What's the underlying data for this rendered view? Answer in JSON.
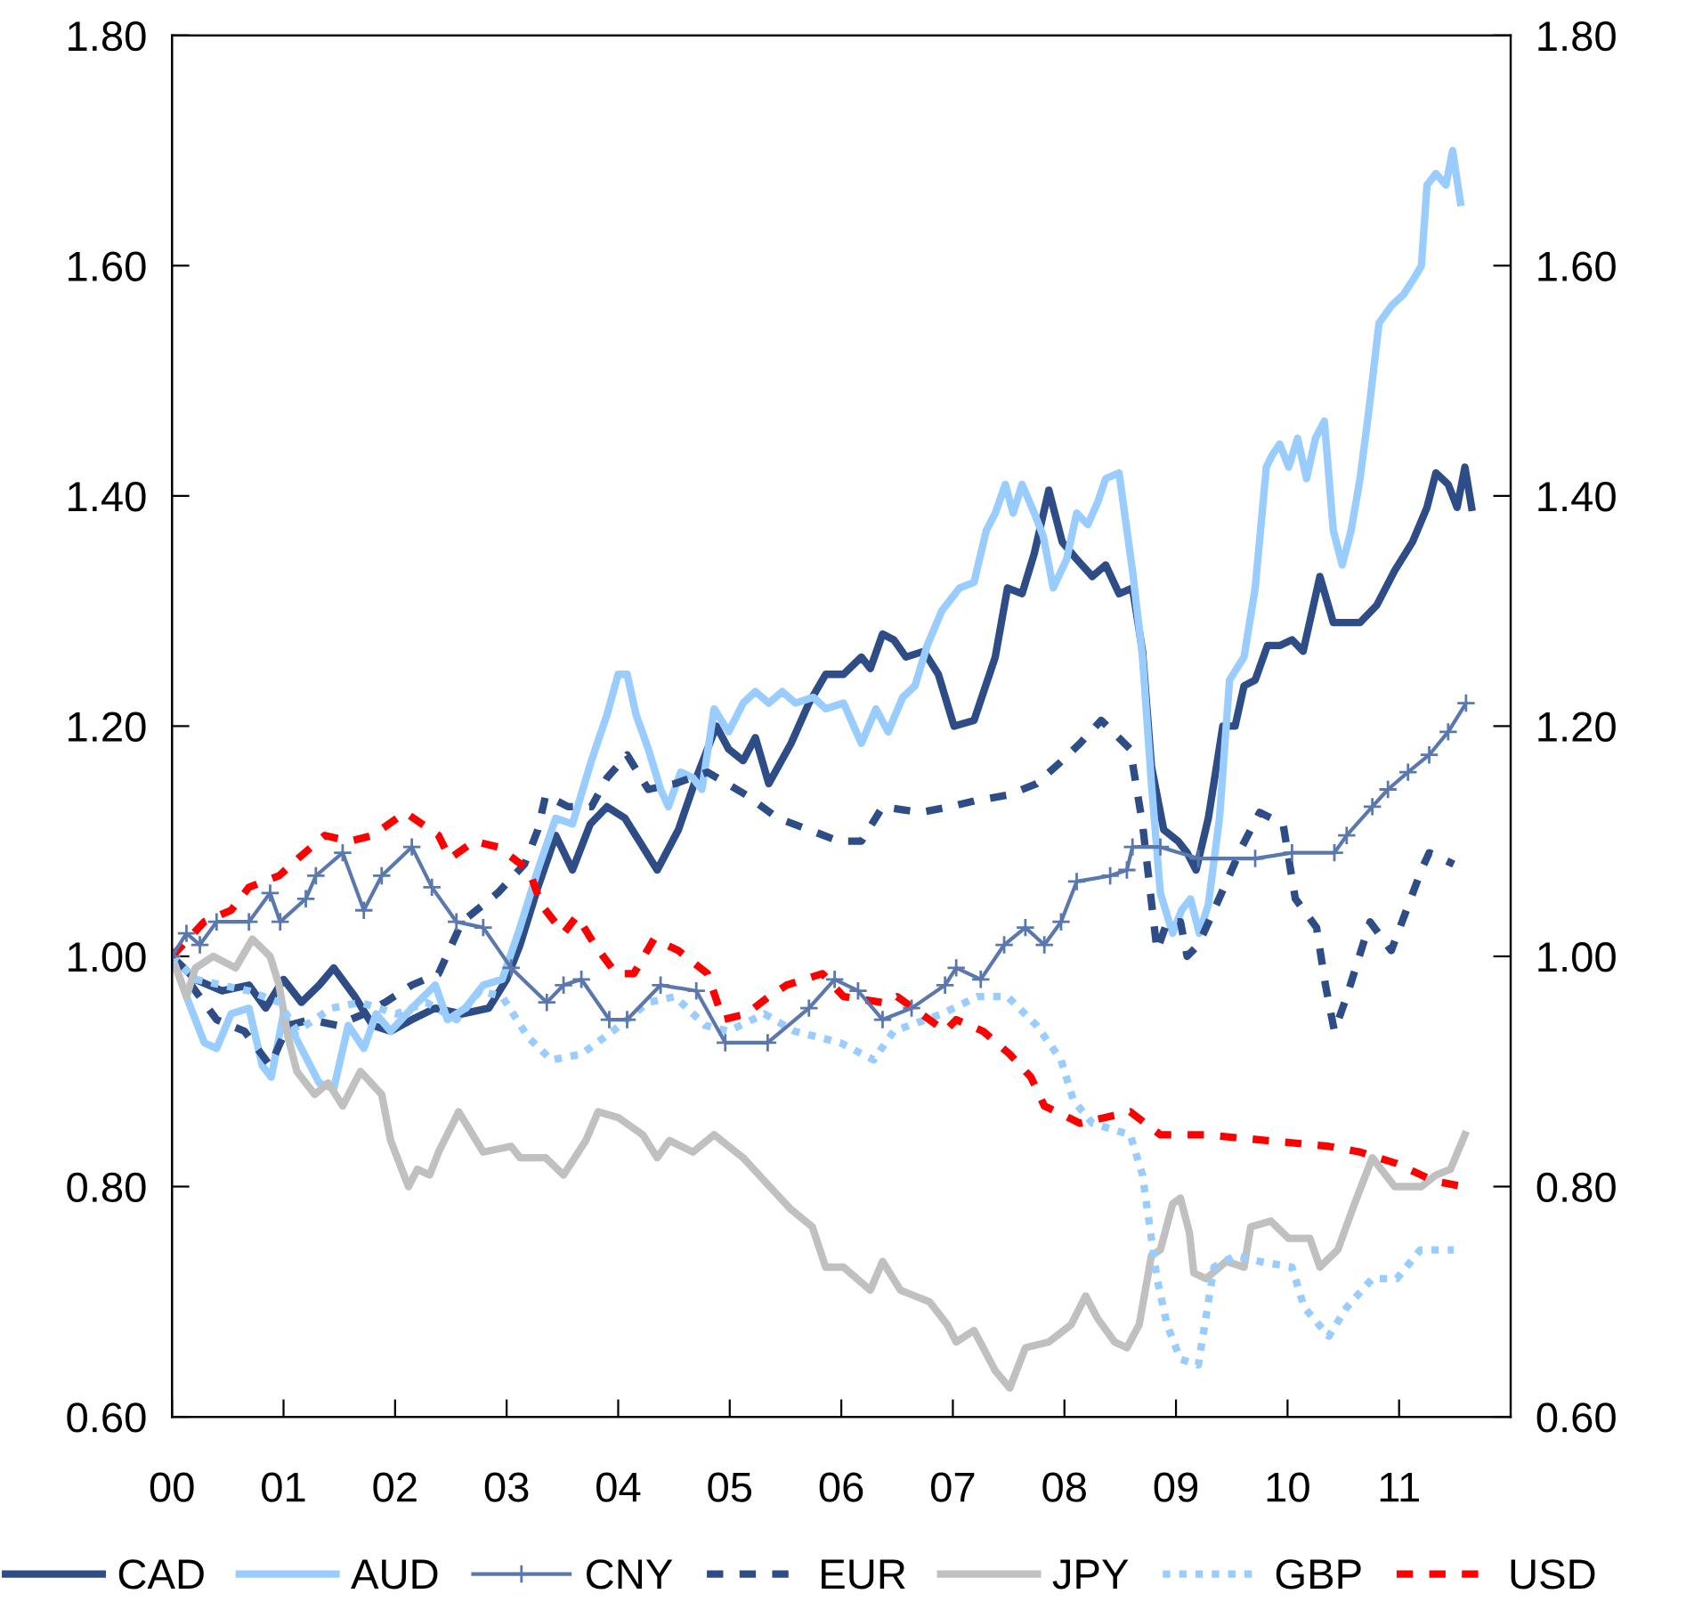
{
  "chart_data": {
    "type": "line",
    "xlim": [
      0,
      12
    ],
    "xticks": [
      {
        "value": 0,
        "label": "00"
      },
      {
        "value": 1,
        "label": "01"
      },
      {
        "value": 2,
        "label": "02"
      },
      {
        "value": 3,
        "label": "03"
      },
      {
        "value": 4,
        "label": "04"
      },
      {
        "value": 5,
        "label": "05"
      },
      {
        "value": 6,
        "label": "06"
      },
      {
        "value": 7,
        "label": "07"
      },
      {
        "value": 8,
        "label": "08"
      },
      {
        "value": 9,
        "label": "09"
      },
      {
        "value": 10,
        "label": "10"
      },
      {
        "value": 11,
        "label": "11"
      }
    ],
    "ylim": [
      0.6,
      1.8
    ],
    "yticks": [
      {
        "value": 0.6,
        "label": "0.60"
      },
      {
        "value": 0.8,
        "label": "0.80"
      },
      {
        "value": 1.0,
        "label": "1.00"
      },
      {
        "value": 1.2,
        "label": "1.20"
      },
      {
        "value": 1.4,
        "label": "1.40"
      },
      {
        "value": 1.6,
        "label": "1.60"
      },
      {
        "value": 1.8,
        "label": "1.80"
      }
    ],
    "y2lim": [
      0.6,
      1.8
    ],
    "y2ticks": [
      {
        "value": 0.6,
        "label": "0.60"
      },
      {
        "value": 0.8,
        "label": "0.80"
      },
      {
        "value": 1.0,
        "label": "1.00"
      },
      {
        "value": 1.2,
        "label": "1.20"
      },
      {
        "value": 1.4,
        "label": "1.40"
      },
      {
        "value": 1.6,
        "label": "1.60"
      },
      {
        "value": 1.8,
        "label": "1.80"
      }
    ],
    "grid": false,
    "legend": "bottom",
    "series": [
      {
        "name": "CAD",
        "color": "#2e4d87",
        "line_style": "solid",
        "marker": "none",
        "x": [
          0,
          0.21,
          0.45,
          0.69,
          0.84,
          1.0,
          1.16,
          1.32,
          1.45,
          1.64,
          1.8,
          1.96,
          2.15,
          2.36,
          2.6,
          2.84,
          3.0,
          3.12,
          3.28,
          3.44,
          3.59,
          3.75,
          3.9,
          4.06,
          4.19,
          4.35,
          4.54,
          4.7,
          4.88,
          4.99,
          5.12,
          5.23,
          5.35,
          5.55,
          5.71,
          5.86,
          6.02,
          6.18,
          6.26,
          6.37,
          6.47,
          6.58,
          6.74,
          6.87,
          7.01,
          7.19,
          7.38,
          7.49,
          7.62,
          7.73,
          7.86,
          7.98,
          8.11,
          8.25,
          8.37,
          8.49,
          8.61,
          8.7,
          8.78,
          8.89,
          9.02,
          9.1,
          9.18,
          9.29,
          9.42,
          9.53,
          9.61,
          9.71,
          9.82,
          9.93,
          10.04,
          10.14,
          10.29,
          10.41,
          10.65,
          10.8,
          10.96,
          11.12,
          11.25,
          11.33,
          11.44,
          11.52,
          11.59,
          11.65
        ],
        "values": [
          1.0,
          0.98,
          0.97,
          0.975,
          0.955,
          0.98,
          0.96,
          0.975,
          0.99,
          0.965,
          0.94,
          0.935,
          0.945,
          0.955,
          0.95,
          0.955,
          0.98,
          1.01,
          1.06,
          1.105,
          1.075,
          1.115,
          1.13,
          1.12,
          1.1,
          1.075,
          1.11,
          1.155,
          1.2,
          1.18,
          1.17,
          1.19,
          1.15,
          1.185,
          1.22,
          1.245,
          1.245,
          1.26,
          1.25,
          1.28,
          1.275,
          1.26,
          1.265,
          1.245,
          1.2,
          1.205,
          1.26,
          1.32,
          1.315,
          1.35,
          1.405,
          1.36,
          1.345,
          1.33,
          1.34,
          1.315,
          1.32,
          1.265,
          1.165,
          1.11,
          1.1,
          1.09,
          1.075,
          1.12,
          1.2,
          1.2,
          1.235,
          1.24,
          1.27,
          1.27,
          1.275,
          1.265,
          1.33,
          1.29,
          1.29,
          1.305,
          1.335,
          1.36,
          1.39,
          1.42,
          1.41,
          1.39,
          1.425,
          1.39
        ]
      },
      {
        "name": "AUD",
        "color": "#99ccff",
        "line_style": "solid",
        "marker": "none",
        "x": [
          0,
          0.13,
          0.29,
          0.4,
          0.53,
          0.69,
          0.81,
          0.89,
          1.0,
          1.16,
          1.32,
          1.45,
          1.58,
          1.72,
          1.83,
          1.96,
          2.15,
          2.36,
          2.47,
          2.63,
          2.79,
          2.96,
          3.12,
          3.28,
          3.44,
          3.59,
          3.76,
          3.9,
          4.0,
          4.08,
          4.16,
          4.27,
          4.38,
          4.45,
          4.56,
          4.67,
          4.75,
          4.86,
          4.99,
          5.12,
          5.23,
          5.35,
          5.47,
          5.59,
          5.75,
          5.86,
          6.02,
          6.18,
          6.31,
          6.42,
          6.55,
          6.66,
          6.77,
          6.9,
          7.06,
          7.19,
          7.3,
          7.38,
          7.47,
          7.54,
          7.62,
          7.73,
          7.81,
          7.9,
          8.02,
          8.11,
          8.21,
          8.3,
          8.37,
          8.49,
          8.61,
          8.7,
          8.78,
          8.86,
          8.97,
          9.05,
          9.13,
          9.21,
          9.29,
          9.39,
          9.48,
          9.61,
          9.71,
          9.81,
          9.86,
          9.93,
          10.01,
          10.09,
          10.17,
          10.25,
          10.33,
          10.41,
          10.49,
          10.57,
          10.65,
          10.73,
          10.82,
          10.93,
          11.04,
          11.14,
          11.2,
          11.25,
          11.33,
          11.42,
          11.48,
          11.55
        ],
        "values": [
          1.0,
          0.965,
          0.925,
          0.92,
          0.95,
          0.955,
          0.905,
          0.895,
          0.95,
          0.92,
          0.89,
          0.885,
          0.94,
          0.92,
          0.95,
          0.935,
          0.955,
          0.975,
          0.945,
          0.955,
          0.975,
          0.98,
          1.025,
          1.075,
          1.12,
          1.115,
          1.17,
          1.21,
          1.245,
          1.245,
          1.21,
          1.18,
          1.145,
          1.13,
          1.16,
          1.155,
          1.145,
          1.215,
          1.195,
          1.22,
          1.23,
          1.22,
          1.23,
          1.22,
          1.225,
          1.215,
          1.22,
          1.185,
          1.215,
          1.195,
          1.225,
          1.235,
          1.27,
          1.3,
          1.32,
          1.325,
          1.37,
          1.385,
          1.41,
          1.385,
          1.41,
          1.385,
          1.365,
          1.32,
          1.345,
          1.385,
          1.375,
          1.395,
          1.415,
          1.42,
          1.335,
          1.26,
          1.15,
          1.055,
          1.02,
          1.04,
          1.05,
          1.02,
          1.045,
          1.12,
          1.24,
          1.26,
          1.32,
          1.425,
          1.435,
          1.445,
          1.425,
          1.45,
          1.415,
          1.45,
          1.465,
          1.37,
          1.34,
          1.37,
          1.415,
          1.475,
          1.55,
          1.565,
          1.575,
          1.59,
          1.6,
          1.67,
          1.68,
          1.67,
          1.7,
          1.655
        ]
      },
      {
        "name": "CNY",
        "color": "#5a78ae",
        "line_style": "solid",
        "marker": "cross",
        "x": [
          0,
          0.13,
          0.25,
          0.4,
          0.69,
          0.88,
          0.97,
          1.2,
          1.29,
          1.53,
          1.72,
          1.88,
          2.15,
          2.33,
          2.55,
          2.79,
          3.04,
          3.36,
          3.51,
          3.67,
          3.92,
          4.08,
          4.38,
          4.7,
          4.96,
          5.34,
          5.71,
          5.94,
          6.15,
          6.37,
          6.63,
          6.93,
          7.03,
          7.25,
          7.46,
          7.65,
          7.82,
          7.97,
          8.11,
          8.41,
          8.56,
          8.61,
          8.86,
          9.2,
          9.71,
          10.04,
          10.42,
          10.53,
          10.76,
          10.9,
          11.08,
          11.27,
          11.44,
          11.6
        ],
        "values": [
          1.0,
          1.02,
          1.01,
          1.03,
          1.03,
          1.055,
          1.03,
          1.05,
          1.07,
          1.09,
          1.04,
          1.07,
          1.095,
          1.06,
          1.03,
          1.025,
          0.99,
          0.96,
          0.975,
          0.98,
          0.945,
          0.945,
          0.975,
          0.97,
          0.925,
          0.925,
          0.955,
          0.98,
          0.97,
          0.945,
          0.955,
          0.975,
          0.99,
          0.98,
          1.01,
          1.025,
          1.01,
          1.03,
          1.065,
          1.07,
          1.075,
          1.095,
          1.095,
          1.085,
          1.085,
          1.09,
          1.09,
          1.105,
          1.13,
          1.145,
          1.16,
          1.175,
          1.195,
          1.22
        ]
      },
      {
        "name": "EUR",
        "color": "#2e4d87",
        "line_style": "dashed",
        "marker": "none",
        "x": [
          0,
          0.21,
          0.4,
          0.65,
          0.88,
          1.04,
          1.24,
          1.48,
          1.72,
          1.91,
          2.15,
          2.39,
          2.6,
          2.92,
          3.16,
          3.28,
          3.35,
          3.55,
          3.76,
          3.9,
          4.08,
          4.27,
          4.51,
          4.8,
          5.15,
          5.43,
          5.71,
          5.98,
          6.18,
          6.37,
          6.71,
          6.98,
          7.19,
          7.49,
          7.75,
          7.98,
          8.14,
          8.33,
          8.59,
          8.7,
          8.83,
          8.92,
          9.04,
          9.1,
          9.2,
          9.34,
          9.59,
          9.75,
          9.96,
          10.07,
          10.26,
          10.34,
          10.42,
          10.53,
          10.74,
          10.93,
          11.2,
          11.27,
          11.49
        ],
        "values": [
          1.0,
          0.97,
          0.945,
          0.935,
          0.905,
          0.94,
          0.945,
          0.94,
          0.95,
          0.96,
          0.975,
          0.985,
          1.03,
          1.055,
          1.08,
          1.11,
          1.14,
          1.13,
          1.13,
          1.155,
          1.175,
          1.145,
          1.15,
          1.16,
          1.14,
          1.12,
          1.11,
          1.1,
          1.1,
          1.13,
          1.125,
          1.13,
          1.135,
          1.14,
          1.15,
          1.17,
          1.185,
          1.205,
          1.18,
          1.115,
          1.005,
          1.03,
          1.03,
          1.0,
          1.01,
          1.04,
          1.095,
          1.125,
          1.115,
          1.05,
          1.025,
          0.975,
          0.935,
          0.965,
          1.03,
          1.005,
          1.075,
          1.09,
          1.08
        ]
      },
      {
        "name": "JPY",
        "color": "#c0c0c0",
        "line_style": "solid",
        "marker": "none",
        "x": [
          0,
          0.13,
          0.21,
          0.37,
          0.57,
          0.72,
          0.88,
          0.96,
          1.04,
          1.12,
          1.28,
          1.4,
          1.53,
          1.69,
          1.88,
          1.96,
          2.12,
          2.2,
          2.31,
          2.39,
          2.57,
          2.79,
          3.04,
          3.12,
          3.35,
          3.51,
          3.71,
          3.82,
          4.0,
          4.22,
          4.35,
          4.46,
          4.67,
          4.86,
          5.12,
          5.31,
          5.55,
          5.74,
          5.86,
          6.02,
          6.26,
          6.37,
          6.53,
          6.79,
          6.95,
          7.03,
          7.19,
          7.38,
          7.51,
          7.65,
          7.86,
          8.06,
          8.19,
          8.3,
          8.45,
          8.56,
          8.67,
          8.78,
          8.86,
          8.97,
          9.04,
          9.12,
          9.16,
          9.27,
          9.45,
          9.61,
          9.67,
          9.85,
          10.01,
          10.2,
          10.29,
          10.45,
          10.6,
          10.76,
          10.96,
          11.2,
          11.33,
          11.46,
          11.59
        ],
        "values": [
          1.0,
          0.965,
          0.99,
          1.0,
          0.99,
          1.015,
          1.0,
          0.975,
          0.93,
          0.9,
          0.88,
          0.89,
          0.87,
          0.9,
          0.88,
          0.84,
          0.8,
          0.815,
          0.81,
          0.83,
          0.865,
          0.83,
          0.835,
          0.825,
          0.825,
          0.81,
          0.84,
          0.865,
          0.86,
          0.845,
          0.825,
          0.84,
          0.83,
          0.845,
          0.825,
          0.805,
          0.78,
          0.765,
          0.73,
          0.73,
          0.71,
          0.735,
          0.71,
          0.7,
          0.68,
          0.665,
          0.675,
          0.64,
          0.625,
          0.66,
          0.665,
          0.68,
          0.705,
          0.685,
          0.665,
          0.66,
          0.68,
          0.74,
          0.745,
          0.785,
          0.79,
          0.76,
          0.725,
          0.72,
          0.735,
          0.73,
          0.765,
          0.77,
          0.755,
          0.755,
          0.73,
          0.745,
          0.785,
          0.825,
          0.8,
          0.8,
          0.81,
          0.815,
          0.845
        ]
      },
      {
        "name": "GBP",
        "color": "#99ccff",
        "line_style": "dotted",
        "marker": "none",
        "x": [
          0,
          0.21,
          0.69,
          0.96,
          1.12,
          1.43,
          1.69,
          2.01,
          2.28,
          2.55,
          2.76,
          2.96,
          3.19,
          3.4,
          3.67,
          3.95,
          4.27,
          4.51,
          4.78,
          4.99,
          5.31,
          5.58,
          5.99,
          6.29,
          6.47,
          6.9,
          7.22,
          7.49,
          7.75,
          7.97,
          8.08,
          8.25,
          8.59,
          8.7,
          8.83,
          8.92,
          9.04,
          9.2,
          9.34,
          9.53,
          9.75,
          10.04,
          10.15,
          10.37,
          10.53,
          10.76,
          10.98,
          11.19,
          11.49
        ],
        "values": [
          1.0,
          0.98,
          0.97,
          0.96,
          0.935,
          0.955,
          0.96,
          0.95,
          0.96,
          0.945,
          0.97,
          0.965,
          0.93,
          0.91,
          0.915,
          0.935,
          0.96,
          0.965,
          0.94,
          0.935,
          0.95,
          0.935,
          0.925,
          0.91,
          0.935,
          0.95,
          0.965,
          0.965,
          0.94,
          0.91,
          0.875,
          0.855,
          0.845,
          0.81,
          0.72,
          0.68,
          0.65,
          0.645,
          0.73,
          0.74,
          0.735,
          0.73,
          0.695,
          0.67,
          0.695,
          0.72,
          0.72,
          0.745,
          0.745
        ]
      },
      {
        "name": "USD",
        "color": "#ff0000",
        "line_style": "dashed",
        "marker": "none",
        "x": [
          0,
          0.29,
          0.53,
          0.69,
          0.96,
          1.13,
          1.37,
          1.59,
          1.8,
          2.09,
          2.39,
          2.49,
          2.71,
          2.92,
          3.2,
          3.31,
          3.51,
          3.63,
          3.79,
          3.98,
          4.14,
          4.32,
          4.54,
          4.8,
          4.94,
          5.15,
          5.35,
          5.51,
          5.83,
          6.02,
          6.37,
          6.5,
          6.79,
          6.93,
          7.03,
          7.27,
          7.51,
          7.7,
          7.82,
          8.14,
          8.59,
          8.86,
          9.26,
          9.82,
          10.37,
          10.65,
          10.98,
          11.31,
          11.57
        ],
        "values": [
          1.0,
          1.03,
          1.04,
          1.06,
          1.07,
          1.085,
          1.105,
          1.1,
          1.105,
          1.125,
          1.105,
          1.085,
          1.1,
          1.095,
          1.075,
          1.045,
          1.02,
          1.035,
          1.01,
          0.985,
          0.985,
          1.015,
          1.005,
          0.985,
          0.945,
          0.95,
          0.965,
          0.975,
          0.985,
          0.965,
          0.96,
          0.965,
          0.945,
          0.935,
          0.945,
          0.935,
          0.915,
          0.895,
          0.87,
          0.855,
          0.865,
          0.845,
          0.845,
          0.84,
          0.835,
          0.83,
          0.82,
          0.805,
          0.8
        ]
      }
    ]
  }
}
